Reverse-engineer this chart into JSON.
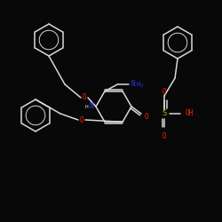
{
  "background_color": "#080808",
  "line_color": "#d8d8d8",
  "atom_colors": {
    "N": "#3333ff",
    "O": "#ff2200",
    "S": "#bbaa00",
    "H": "#d8d8d8",
    "C": "#d8d8d8"
  },
  "figsize": [
    2.5,
    2.5
  ],
  "dpi": 100
}
